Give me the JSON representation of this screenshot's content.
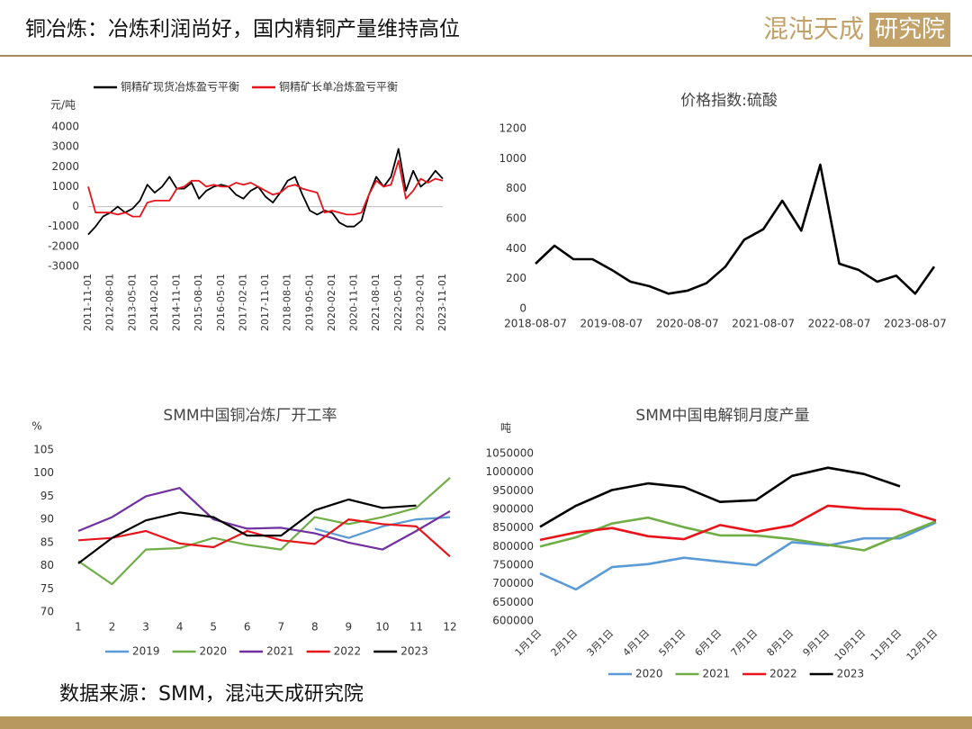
{
  "header": {
    "title": "铜冶炼：冶炼利润尚好，国内精铜产量维持高位",
    "logo_main": "混沌天成",
    "logo_box": "研究院"
  },
  "footer": {
    "source": "数据来源：SMM，混沌天成研究院"
  },
  "chart_data": [
    {
      "type": "line",
      "y_unit": "元/吨",
      "legend": "top",
      "zero_line": true,
      "categories": [
        "2011-11-01",
        null,
        null,
        "2012-08-01",
        null,
        null,
        "2013-05-01",
        null,
        null,
        "2014-02-01",
        null,
        null,
        "2014-11-01",
        null,
        null,
        "2015-08-01",
        null,
        null,
        "2016-05-01",
        null,
        null,
        "2017-02-01",
        null,
        null,
        "2017-11-01",
        null,
        null,
        "2018-08-01",
        null,
        null,
        "2019-05-01",
        null,
        null,
        "2020-02-01",
        null,
        null,
        "2020-11-01",
        null,
        null,
        "2021-08-01",
        null,
        null,
        "2022-05-01",
        null,
        null,
        "2023-02-01",
        null,
        null,
        "2023-11-01"
      ],
      "series": [
        {
          "name": "铜精矿现货冶炼盈亏平衡",
          "color": "#000000",
          "values": [
            -1400,
            -1000,
            -500,
            -300,
            0,
            -300,
            -100,
            300,
            1100,
            700,
            1000,
            1500,
            900,
            900,
            1200,
            400,
            800,
            1000,
            1100,
            1000,
            600,
            400,
            800,
            1000,
            500,
            200,
            700,
            1300,
            1500,
            600,
            -200,
            -400,
            -200,
            -300,
            -800,
            -1000,
            -1000,
            -700,
            600,
            1500,
            1000,
            1500,
            2900,
            800,
            1800,
            1000,
            1300,
            1800,
            1400
          ]
        },
        {
          "name": "铜精矿长单冶炼盈亏平衡",
          "color": "#e8141b",
          "values": [
            1000,
            -300,
            -300,
            -300,
            -400,
            -300,
            -500,
            -500,
            200,
            300,
            300,
            300,
            900,
            1000,
            1300,
            1300,
            1000,
            1100,
            1000,
            1000,
            1200,
            1100,
            1200,
            1000,
            800,
            600,
            700,
            1000,
            1100,
            900,
            800,
            700,
            -300,
            -200,
            -300,
            -400,
            -400,
            -300,
            600,
            1300,
            1000,
            1100,
            2300,
            400,
            800,
            1400,
            1200,
            1400,
            1300
          ]
        }
      ],
      "ylim": [
        -3000,
        4000
      ],
      "yticks": [
        -3000,
        -2000,
        -1000,
        0,
        1000,
        2000,
        3000,
        4000
      ],
      "grid": false
    },
    {
      "type": "line",
      "title": "价格指数:硫酸",
      "color": "#000000",
      "categories": [
        "2018-08-07",
        null,
        null,
        null,
        "2019-08-07",
        null,
        null,
        null,
        "2020-08-07",
        null,
        null,
        null,
        "2021-08-07",
        null,
        null,
        null,
        "2022-08-07",
        null,
        null,
        null,
        "2023-08-07",
        null
      ],
      "values": [
        300,
        420,
        330,
        330,
        260,
        180,
        150,
        100,
        120,
        170,
        280,
        460,
        530,
        720,
        520,
        960,
        300,
        260,
        180,
        220,
        100,
        280
      ],
      "ylim": [
        0,
        1200
      ],
      "yticks": [
        0,
        200,
        400,
        600,
        800,
        1000,
        1200
      ],
      "grid": false
    },
    {
      "type": "line",
      "title": "SMM中国铜冶炼厂开工率",
      "y_unit": "%",
      "legend": "bottom",
      "categories": [
        1,
        2,
        3,
        4,
        5,
        6,
        7,
        8,
        9,
        10,
        11,
        12
      ],
      "series": [
        {
          "name": "2019",
          "color": "#5b9bd5",
          "values": [
            null,
            null,
            null,
            null,
            null,
            null,
            null,
            88,
            86,
            88.5,
            90,
            90.5
          ]
        },
        {
          "name": "2020",
          "color": "#70ad47",
          "values": [
            81,
            76,
            83.5,
            83.8,
            86,
            84.5,
            83.5,
            90.5,
            89,
            90.5,
            92.5,
            99
          ]
        },
        {
          "name": "2021",
          "color": "#7030a0",
          "values": [
            87.5,
            90.5,
            95,
            96.8,
            90,
            88,
            88.2,
            87,
            85,
            83.5,
            87.5,
            91.8
          ]
        },
        {
          "name": "2022",
          "color": "#e8141b",
          "values": [
            85.5,
            86,
            87.5,
            84.8,
            84,
            87.5,
            85.5,
            84.7,
            90,
            89,
            88.5,
            82
          ]
        },
        {
          "name": "2023",
          "color": "#000000",
          "values": [
            80.5,
            86,
            89.8,
            91.5,
            90.5,
            86.5,
            86.5,
            92,
            94.3,
            92.5,
            93,
            null
          ]
        }
      ],
      "ylim": [
        70,
        105
      ],
      "yticks": [
        70,
        75,
        80,
        85,
        90,
        95,
        100,
        105
      ],
      "grid": false
    },
    {
      "type": "line",
      "title": "SMM中国电解铜月度产量",
      "y_unit": "吨",
      "legend": "bottom",
      "categories": [
        "1月1日",
        "2月1日",
        "3月1日",
        "4月1日",
        "5月1日",
        "6月1日",
        "7月1日",
        "8月1日",
        "9月1日",
        "10月1日",
        "11月1日",
        "12月1日"
      ],
      "series": [
        {
          "name": "2020",
          "color": "#5b9bd5",
          "values": [
            728000,
            685000,
            745000,
            753000,
            770000,
            760000,
            750000,
            812000,
            803000,
            822000,
            822000,
            865000
          ]
        },
        {
          "name": "2021",
          "color": "#70ad47",
          "values": [
            800000,
            825000,
            862000,
            878000,
            852000,
            830000,
            830000,
            820000,
            805000,
            790000,
            830000,
            868000
          ]
        },
        {
          "name": "2022",
          "color": "#e8141b",
          "values": [
            818000,
            838000,
            850000,
            828000,
            820000,
            858000,
            840000,
            857000,
            910000,
            902000,
            900000,
            870000
          ]
        },
        {
          "name": "2023",
          "color": "#000000",
          "values": [
            853000,
            910000,
            952000,
            970000,
            960000,
            920000,
            925000,
            990000,
            1012000,
            995000,
            962000,
            null
          ]
        }
      ],
      "ylim": [
        600000,
        1050000
      ],
      "yticks": [
        600000,
        650000,
        700000,
        750000,
        800000,
        850000,
        900000,
        950000,
        1000000,
        1050000
      ],
      "grid": false
    }
  ]
}
